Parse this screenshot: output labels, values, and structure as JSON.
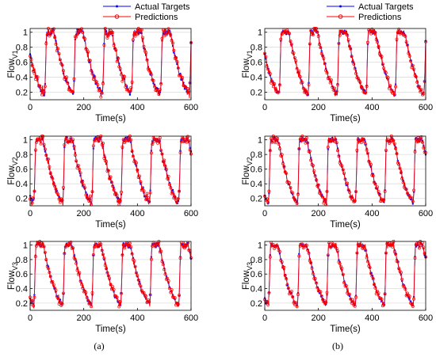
{
  "figure_labels": [
    "(a)",
    "(b)"
  ],
  "legend": {
    "entries": [
      {
        "label": "Actual Targets",
        "color": "#0000ff",
        "marker": "dot"
      },
      {
        "label": "Predictions",
        "color": "#ff0000",
        "marker": "circle"
      }
    ]
  },
  "chart_data": [
    {
      "panel": "(a)",
      "type": "line",
      "ylabel_main": "Flow",
      "ylabel_sub": "V1",
      "xlabel": "Time(s)",
      "xlim": [
        0,
        600
      ],
      "ylim": [
        0.1,
        1.05
      ],
      "xticks": [
        0,
        200,
        400,
        600
      ],
      "yticks": [
        0.2,
        0.4,
        0.6,
        0.8,
        1
      ],
      "grid": "horizontal",
      "period": 108,
      "phase": 55,
      "high": 1.0,
      "low": 0.18,
      "noise": 0.04,
      "series": [
        {
          "name": "Actual Targets",
          "color": "#0000ff"
        },
        {
          "name": "Predictions",
          "color": "#ff0000"
        }
      ]
    },
    {
      "panel": "(a)",
      "type": "line",
      "ylabel_main": "Flow",
      "ylabel_sub": "V2",
      "xlabel": "Time(s)",
      "xlim": [
        0,
        600
      ],
      "ylim": [
        0.1,
        1.05
      ],
      "xticks": [
        0,
        200,
        400,
        600
      ],
      "yticks": [
        0.2,
        0.4,
        0.6,
        0.8,
        1
      ],
      "grid": "horizontal",
      "period": 108,
      "phase": 15,
      "high": 1.0,
      "low": 0.15,
      "noise": 0.04,
      "series": [
        {
          "name": "Actual Targets",
          "color": "#0000ff"
        },
        {
          "name": "Predictions",
          "color": "#ff0000"
        }
      ]
    },
    {
      "panel": "(a)",
      "type": "line",
      "ylabel_main": "Flow",
      "ylabel_sub": "V3",
      "xlabel": "Time(s)",
      "xlim": [
        0,
        600
      ],
      "ylim": [
        0.1,
        1.05
      ],
      "xticks": [
        0,
        200,
        400,
        600
      ],
      "yticks": [
        0.2,
        0.4,
        0.6,
        0.8,
        1
      ],
      "grid": "horizontal",
      "period": 108,
      "phase": 15,
      "high": 1.0,
      "low": 0.18,
      "noise": 0.03,
      "series": [
        {
          "name": "Actual Targets",
          "color": "#0000ff"
        },
        {
          "name": "Predictions",
          "color": "#ff0000"
        }
      ]
    },
    {
      "panel": "(b)",
      "type": "line",
      "ylabel_main": "Flow",
      "ylabel_sub": "V1",
      "xlabel": "Time(s)",
      "xlim": [
        0,
        600
      ],
      "ylim": [
        0.1,
        1.05
      ],
      "xticks": [
        0,
        200,
        400,
        600
      ],
      "yticks": [
        0.2,
        0.4,
        0.6,
        0.8,
        1
      ],
      "grid": "horizontal",
      "period": 108,
      "phase": 55,
      "high": 1.0,
      "low": 0.18,
      "noise": 0.03,
      "series": [
        {
          "name": "Actual Targets",
          "color": "#0000ff"
        },
        {
          "name": "Predictions",
          "color": "#ff0000"
        }
      ]
    },
    {
      "panel": "(b)",
      "type": "line",
      "ylabel_main": "Flow",
      "ylabel_sub": "V2",
      "xlabel": "Time(s)",
      "xlim": [
        0,
        600
      ],
      "ylim": [
        0.1,
        1.05
      ],
      "xticks": [
        0,
        200,
        400,
        600
      ],
      "yticks": [
        0.2,
        0.4,
        0.6,
        0.8,
        1
      ],
      "grid": "horizontal",
      "period": 108,
      "phase": 15,
      "high": 1.0,
      "low": 0.15,
      "noise": 0.03,
      "series": [
        {
          "name": "Actual Targets",
          "color": "#0000ff"
        },
        {
          "name": "Predictions",
          "color": "#ff0000"
        }
      ]
    },
    {
      "panel": "(b)",
      "type": "line",
      "ylabel_main": "Flow",
      "ylabel_sub": "V3",
      "xlabel": "Time(s)",
      "xlim": [
        0,
        600
      ],
      "ylim": [
        0.1,
        1.05
      ],
      "xticks": [
        0,
        200,
        400,
        600
      ],
      "yticks": [
        0.2,
        0.4,
        0.6,
        0.8,
        1
      ],
      "grid": "horizontal",
      "period": 108,
      "phase": 15,
      "high": 1.0,
      "low": 0.18,
      "noise": 0.03,
      "series": [
        {
          "name": "Actual Targets",
          "color": "#0000ff"
        },
        {
          "name": "Predictions",
          "color": "#ff0000"
        }
      ]
    }
  ]
}
